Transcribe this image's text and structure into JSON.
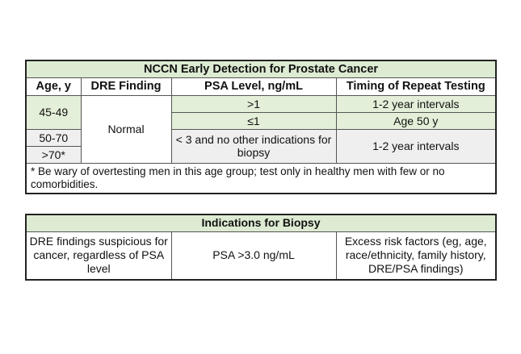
{
  "table1": {
    "title": "NCCN Early Detection for Prostate Cancer",
    "headers": [
      "Age, y",
      "DRE Finding",
      "PSA Level, ng/mL",
      "Timing of Repeat Testing"
    ],
    "rows": {
      "age_45_49": "45-49",
      "age_50_70": "50-70",
      "age_70_plus": ">70*",
      "dre_normal": "Normal",
      "psa_gt1": ">1",
      "psa_le1": "≤1",
      "psa_lt3": "< 3 and no other indications for biopsy",
      "timing_1": "1-2 year intervals",
      "timing_2": "Age 50 y",
      "timing_3": "1-2 year intervals"
    },
    "footnote": "* Be wary of overtesting men in this age group; test only in healthy men with few or no comorbidities."
  },
  "table2": {
    "title": "Indications for Biopsy",
    "cells": [
      "DRE findings suspicious for cancer, regardless of PSA level",
      "PSA >3.0 ng/mL",
      "Excess risk factors (eg, age, race/ethnicity, family history, DRE/PSA findings)"
    ]
  }
}
